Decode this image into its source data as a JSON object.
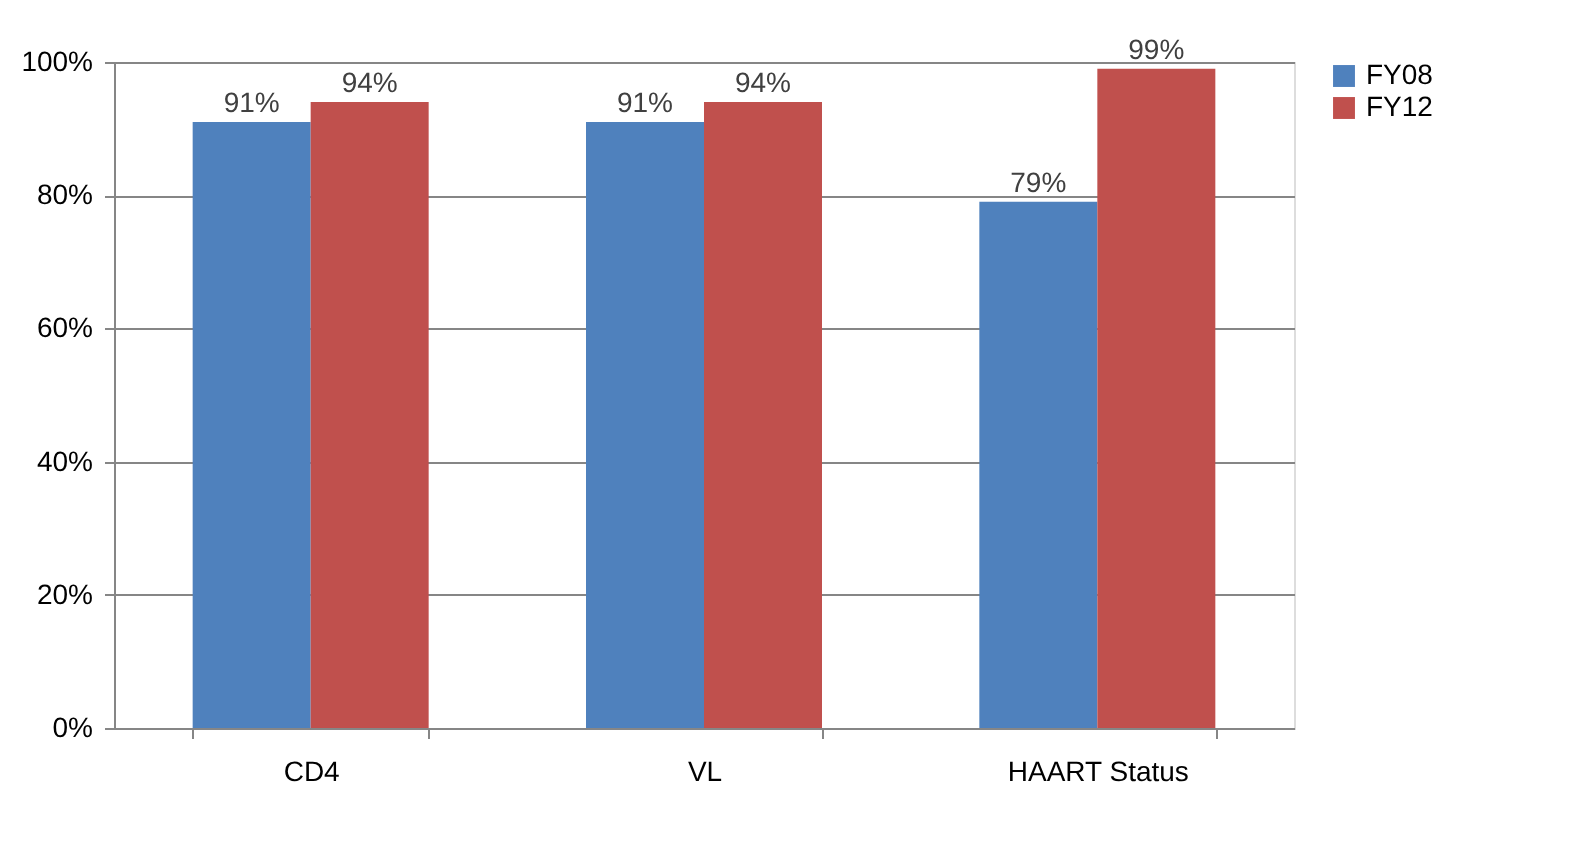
{
  "chart_data": {
    "type": "bar",
    "categories": [
      "CD4",
      "VL",
      "HAART Status"
    ],
    "series": [
      {
        "name": "FY08",
        "color": "#4f81bd",
        "values": [
          91,
          91,
          79
        ],
        "value_labels": [
          "91%",
          "91%",
          "79%"
        ]
      },
      {
        "name": "FY12",
        "color": "#c0504d",
        "values": [
          94,
          94,
          99
        ],
        "value_labels": [
          "94%",
          "94%",
          "99%"
        ]
      }
    ],
    "ylim": [
      0,
      100
    ],
    "yticks": [
      {
        "value": 0,
        "label": "0%"
      },
      {
        "value": 20,
        "label": "20%"
      },
      {
        "value": 40,
        "label": "40%"
      },
      {
        "value": 60,
        "label": "60%"
      },
      {
        "value": 80,
        "label": "80%"
      },
      {
        "value": 100,
        "label": "100%"
      }
    ],
    "grid": "y",
    "legend": "right"
  }
}
